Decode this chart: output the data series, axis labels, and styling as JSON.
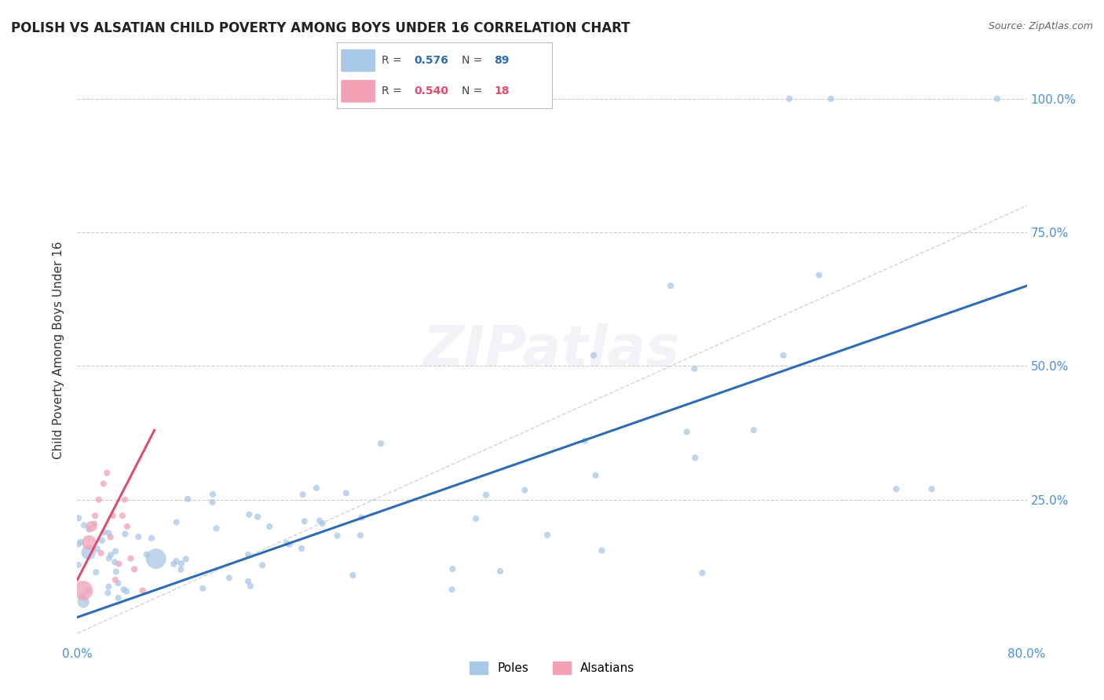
{
  "title": "POLISH VS ALSATIAN CHILD POVERTY AMONG BOYS UNDER 16 CORRELATION CHART",
  "source": "Source: ZipAtlas.com",
  "tick_color": "#4a90d9",
  "ylabel": "Child Poverty Among Boys Under 16",
  "xlim": [
    0.0,
    0.8
  ],
  "ylim": [
    -0.02,
    1.08
  ],
  "poles_color": "#a8c8e8",
  "alsatians_color": "#f4a0b5",
  "poles_line_color": "#2e6db4",
  "alsatians_line_color": "#d94f6e",
  "diag_line_color": "#c8c8c8",
  "R_poles": "0.576",
  "N_poles": "89",
  "R_alsatians": "0.540",
  "N_alsatians": "18",
  "grid_color": "#cccccc",
  "background_color": "#ffffff",
  "title_fontsize": 12,
  "axis_label_fontsize": 11,
  "tick_fontsize": 11,
  "source_fontsize": 9
}
